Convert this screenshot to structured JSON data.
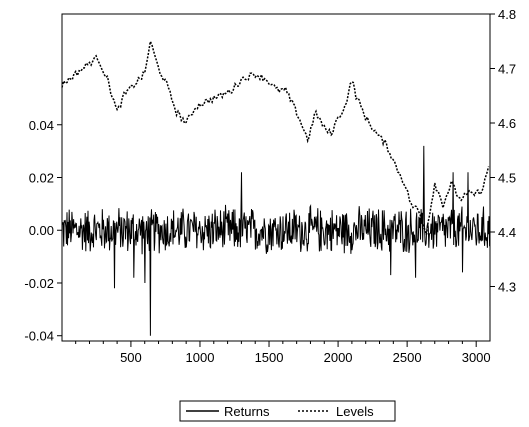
{
  "chart_data": {
    "type": "line",
    "title": "",
    "xlabel": "",
    "x_range": [
      1,
      3100
    ],
    "x_ticks": [
      "500",
      "1000",
      "1500",
      "2000",
      "2500",
      "3000"
    ],
    "x_tick_values": [
      500,
      1000,
      1500,
      2000,
      2500,
      3000
    ],
    "y_left": {
      "ylabel": "",
      "ylim": [
        -0.042,
        0.082
      ],
      "ticks": [
        "0.04",
        "0.02",
        "0.00",
        "-0.02",
        "-0.04"
      ],
      "tick_values": [
        0.04,
        0.02,
        0.0,
        -0.02,
        -0.04
      ]
    },
    "y_right": {
      "ylabel": "",
      "ylim": [
        4.2,
        4.8
      ],
      "ticks": [
        "4.8",
        "4.7",
        "4.6",
        "4.5",
        "4.4",
        "4.3"
      ],
      "tick_values": [
        4.8,
        4.7,
        4.6,
        4.5,
        4.4,
        4.3
      ]
    },
    "grid": false,
    "legend_position": "bottom-center",
    "series": [
      {
        "name": "Returns",
        "axis": "left",
        "style": "solid",
        "color": "#000000",
        "typical_range": [
          -0.01,
          0.01
        ],
        "spikes": [
          {
            "x": 380,
            "y": -0.022
          },
          {
            "x": 520,
            "y": -0.018
          },
          {
            "x": 600,
            "y": -0.02
          },
          {
            "x": 640,
            "y": -0.04
          },
          {
            "x": 1300,
            "y": 0.022
          },
          {
            "x": 2380,
            "y": -0.017
          },
          {
            "x": 2560,
            "y": -0.018
          },
          {
            "x": 2620,
            "y": 0.032
          },
          {
            "x": 2830,
            "y": 0.022
          },
          {
            "x": 2900,
            "y": -0.016
          },
          {
            "x": 2940,
            "y": 0.022
          }
        ]
      },
      {
        "name": "Levels",
        "axis": "right",
        "style": "dashed",
        "color": "#000000",
        "x": [
          1,
          100,
          200,
          260,
          330,
          400,
          450,
          520,
          600,
          640,
          700,
          760,
          830,
          900,
          970,
          1050,
          1150,
          1230,
          1300,
          1400,
          1480,
          1560,
          1620,
          1700,
          1780,
          1840,
          1900,
          1950,
          2000,
          2050,
          2100,
          2130,
          2200,
          2280,
          2350,
          2420,
          2480,
          2530,
          2580,
          2640,
          2700,
          2760,
          2820,
          2880,
          2950,
          3000,
          3050,
          3090
        ],
        "y": [
          4.67,
          4.69,
          4.71,
          4.72,
          4.68,
          4.62,
          4.65,
          4.67,
          4.69,
          4.75,
          4.7,
          4.67,
          4.62,
          4.6,
          4.63,
          4.64,
          4.65,
          4.66,
          4.68,
          4.69,
          4.68,
          4.66,
          4.66,
          4.62,
          4.57,
          4.62,
          4.59,
          4.58,
          4.61,
          4.63,
          4.68,
          4.65,
          4.61,
          4.58,
          4.56,
          4.52,
          4.49,
          4.45,
          4.44,
          4.4,
          4.49,
          4.45,
          4.49,
          4.46,
          4.47,
          4.47,
          4.48,
          4.52
        ]
      }
    ]
  }
}
